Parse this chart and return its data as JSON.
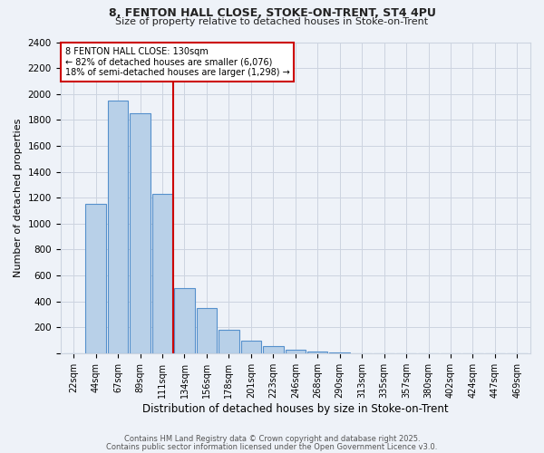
{
  "title1": "8, FENTON HALL CLOSE, STOKE-ON-TRENT, ST4 4PU",
  "title2": "Size of property relative to detached houses in Stoke-on-Trent",
  "xlabel": "Distribution of detached houses by size in Stoke-on-Trent",
  "ylabel": "Number of detached properties",
  "bar_labels": [
    "22sqm",
    "44sqm",
    "67sqm",
    "89sqm",
    "111sqm",
    "134sqm",
    "156sqm",
    "178sqm",
    "201sqm",
    "223sqm",
    "246sqm",
    "268sqm",
    "290sqm",
    "313sqm",
    "335sqm",
    "357sqm",
    "380sqm",
    "402sqm",
    "424sqm",
    "447sqm",
    "469sqm"
  ],
  "bar_values": [
    0,
    1150,
    1950,
    1850,
    1230,
    500,
    350,
    180,
    100,
    55,
    25,
    10,
    5,
    2,
    1,
    1,
    0,
    0,
    0,
    0,
    0
  ],
  "bar_color": "#b8d0e8",
  "bar_edge_color": "#5590cc",
  "reference_line_x": 4.5,
  "annotation_line1": "8 FENTON HALL CLOSE: 130sqm",
  "annotation_line2": "← 82% of detached houses are smaller (6,076)",
  "annotation_line3": "18% of semi-detached houses are larger (1,298) →",
  "annotation_box_color": "#ffffff",
  "annotation_border_color": "#cc0000",
  "ref_line_color": "#cc0000",
  "ylim": [
    0,
    2400
  ],
  "yticks": [
    0,
    200,
    400,
    600,
    800,
    1000,
    1200,
    1400,
    1600,
    1800,
    2000,
    2200,
    2400
  ],
  "footer1": "Contains HM Land Registry data © Crown copyright and database right 2025.",
  "footer2": "Contains public sector information licensed under the Open Government Licence v3.0.",
  "bg_color": "#eef2f8",
  "grid_color": "#ccd4e0",
  "title1_fontsize": 9,
  "title2_fontsize": 8
}
